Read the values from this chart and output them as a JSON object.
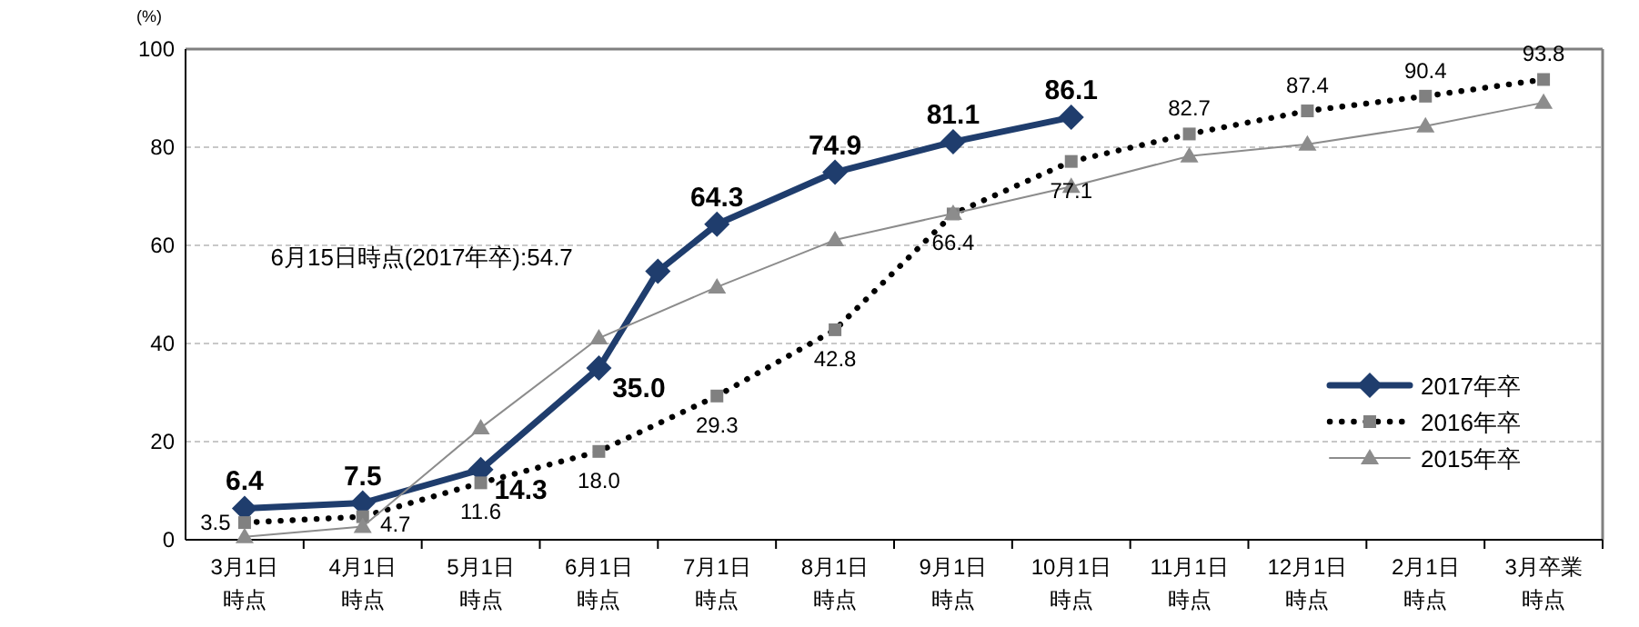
{
  "chart_data": {
    "type": "line",
    "ylabel": "(%)",
    "categories": [
      "3月1日時点",
      null,
      "4月1日時点",
      null,
      "5月1日時点",
      null,
      "6月1日時点",
      null,
      "7月1日時点",
      null,
      "8月1日時点",
      null,
      "9月1日時点",
      null,
      "10月1日時点",
      null,
      "11月1日時点",
      null,
      "12月1日時点",
      null,
      "2月1日時点",
      null,
      "3月卒業時点"
    ],
    "ylim": [
      0,
      100
    ],
    "yticks": [
      0,
      20,
      40,
      60,
      80,
      100
    ],
    "grid": "y",
    "legend": "bottom right",
    "series": [
      {
        "name": "2017年卒",
        "color": "#1f3d6d",
        "marker": "diamond",
        "line_style": "solid",
        "values": [
          6.4,
          null,
          7.5,
          null,
          14.3,
          null,
          35.0,
          54.7,
          64.3,
          null,
          74.9,
          null,
          81.1,
          null,
          86.1,
          null,
          null,
          null,
          null,
          null,
          null,
          null,
          null
        ],
        "value_labels": [
          "6.4",
          null,
          "7.5",
          null,
          "14.3",
          null,
          "35.0",
          null,
          "64.3",
          null,
          "74.9",
          null,
          "81.1",
          null,
          "86.1",
          null,
          null,
          null,
          null,
          null,
          null,
          null,
          null
        ]
      },
      {
        "name": "2016年卒",
        "color": "#000000",
        "marker": "square",
        "line_style": "dotted",
        "x": [
          "3月1日時点",
          "4月1日時点",
          "5月1日時点",
          "6月1日時点",
          "7月1日時点",
          "8月1日時点",
          "9月1日時点",
          "10月1日時点",
          "11月1日時点",
          "12月1日時点",
          "2月1日時点",
          "3月卒業時点"
        ],
        "values": [
          3.5,
          4.7,
          11.6,
          18.0,
          29.3,
          42.8,
          66.4,
          77.1,
          82.7,
          87.4,
          90.4,
          93.8
        ],
        "value_labels": [
          "3.5",
          "4.7",
          "11.6",
          "18.0",
          "29.3",
          "42.8",
          "66.4",
          "77.1",
          "82.7",
          "87.4",
          "90.4",
          "93.8"
        ]
      },
      {
        "name": "2015年卒",
        "color": "#8c8c8c",
        "marker": "triangle",
        "line_style": "solid",
        "x": [
          "3月1日時点",
          "4月1日時点",
          "5月1日時点",
          "6月1日時点",
          "7月1日時点",
          "8月1日時点",
          "9月1日時点",
          "10月1日時点",
          "11月1日時点",
          "12月1日時点",
          "2月1日時点",
          "3月卒業時点"
        ],
        "values": [
          0.6,
          2.7,
          22.8,
          41.1,
          51.5,
          61.1,
          66.5,
          72.0,
          78.2,
          80.6,
          84.3,
          89.1
        ]
      }
    ],
    "annotations": [
      "6月15日時点(2017年卒):54.7"
    ]
  }
}
